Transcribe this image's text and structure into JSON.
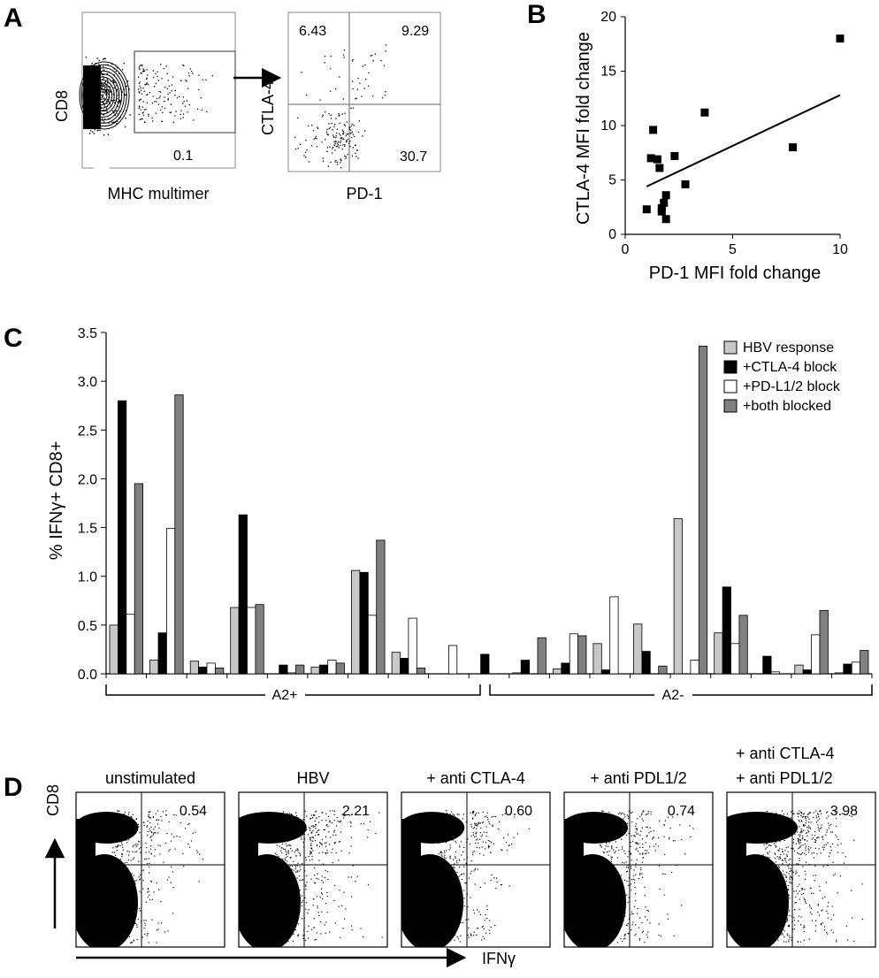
{
  "panel_letters": {
    "a": "A",
    "b": "B",
    "c": "C",
    "d": "D"
  },
  "panel_a": {
    "plot1_ylabel": "CD8",
    "plot1_xlabel": "MHC multimer",
    "plot1_gate_value": "0.1",
    "plot2_ylabel": "CTLA-4",
    "plot2_xlabel": "PD-1",
    "plot2_q_upper_left": "6.43",
    "plot2_q_upper_right": "9.29",
    "plot2_q_lower_right": "30.7"
  },
  "chart_data": [
    {
      "panel": "B",
      "type": "scatter",
      "xlabel": "PD-1 MFI fold change",
      "ylabel": "CTLA-4 MFI fold change",
      "xlim": [
        0,
        10
      ],
      "ylim": [
        0,
        20
      ],
      "xticks": [
        0,
        5,
        10
      ],
      "yticks": [
        0,
        5,
        10,
        15,
        20
      ],
      "points": [
        {
          "x": 1.6,
          "y": 6.1
        },
        {
          "x": 1.3,
          "y": 9.6
        },
        {
          "x": 1.2,
          "y": 7.0
        },
        {
          "x": 1.5,
          "y": 6.9
        },
        {
          "x": 2.3,
          "y": 7.2
        },
        {
          "x": 1.9,
          "y": 3.6
        },
        {
          "x": 1.8,
          "y": 2.9
        },
        {
          "x": 1.7,
          "y": 2.4
        },
        {
          "x": 1.7,
          "y": 2.1
        },
        {
          "x": 1.9,
          "y": 1.4
        },
        {
          "x": 1.0,
          "y": 2.3
        },
        {
          "x": 2.8,
          "y": 4.6
        },
        {
          "x": 3.7,
          "y": 11.2
        },
        {
          "x": 7.8,
          "y": 8.0
        },
        {
          "x": 10.0,
          "y": 18.0
        }
      ],
      "fit_line": [
        {
          "x": 1.0,
          "y": 4.4
        },
        {
          "x": 10.0,
          "y": 12.8
        }
      ]
    },
    {
      "panel": "C",
      "type": "bar",
      "ylabel": "% IFNγ+ CD8+",
      "ylim": [
        0,
        3.5
      ],
      "yticks": [
        "0.0",
        "0.5",
        "1.0",
        "1.5",
        "2.0",
        "2.5",
        "3.0",
        "3.5"
      ],
      "legend_position": "top-right",
      "series_names": [
        "HBV response",
        "+CTLA-4 block",
        "+PD-L1/2 block",
        "+both blocked"
      ],
      "series_colors": [
        "#c8c8c8",
        "#000000",
        "#ffffff",
        "#808080"
      ],
      "groups": [
        [
          0.5,
          2.8,
          0.61,
          1.95
        ],
        [
          0.14,
          0.42,
          1.49,
          2.86
        ],
        [
          0.13,
          0.07,
          0.11,
          0.06
        ],
        [
          0.68,
          1.63,
          0.68,
          0.71
        ],
        [
          0.0,
          0.09,
          0.01,
          0.09
        ],
        [
          0.07,
          0.09,
          0.14,
          0.11
        ],
        [
          1.06,
          1.04,
          0.6,
          1.37
        ],
        [
          0.22,
          0.16,
          0.57,
          0.06
        ],
        [
          0.0,
          0.0,
          0.29,
          0.0
        ],
        [
          0.0,
          0.2,
          0.0,
          0.0
        ],
        [
          0.01,
          0.14,
          0.0,
          0.37
        ],
        [
          0.05,
          0.11,
          0.41,
          0.39
        ],
        [
          0.31,
          0.04,
          0.79,
          0.0
        ],
        [
          0.51,
          0.23,
          0.0,
          0.08
        ],
        [
          1.59,
          0.0,
          0.14,
          3.36
        ],
        [
          0.42,
          0.89,
          0.31,
          0.6
        ],
        [
          0.0,
          0.18,
          0.02,
          0.0
        ],
        [
          0.09,
          0.04,
          0.4,
          0.65
        ],
        [
          0.01,
          0.1,
          0.12,
          0.24
        ]
      ],
      "bracket_a2pos_label": "A2+",
      "bracket_a2neg_label": "A2-"
    }
  ],
  "panel_d": {
    "ylabel": "CD8",
    "xlabel": "IFNγ",
    "plots": [
      {
        "title": "unstimulated",
        "value": "0.54",
        "density": 0.4
      },
      {
        "title": "HBV",
        "value": "2.21",
        "density": 0.8
      },
      {
        "title": "+ anti CTLA-4",
        "value": "0.60",
        "density": 0.45
      },
      {
        "title": "+ anti PDL1/2",
        "value": "0.74",
        "density": 0.5
      },
      {
        "title": "+ anti CTLA-4",
        "title2": "+ anti PDL1/2",
        "value": "3.98",
        "density": 1.0
      }
    ]
  }
}
